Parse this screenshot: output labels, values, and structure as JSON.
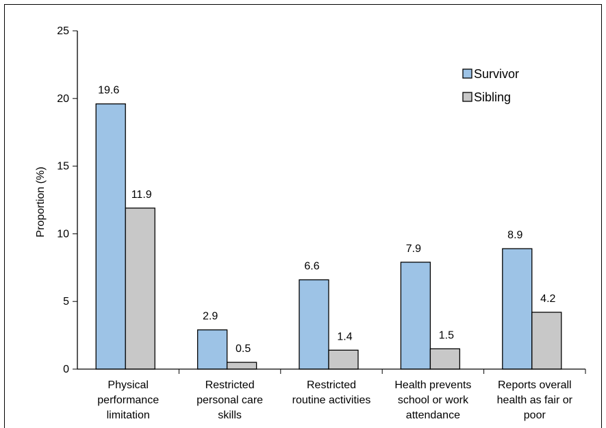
{
  "chart_data": {
    "type": "bar",
    "ylabel": "Proportion (%)",
    "xlabel": "",
    "ylim": [
      0,
      25
    ],
    "yticks": [
      0,
      5,
      10,
      15,
      20,
      25
    ],
    "categories": [
      [
        "Physical",
        "performance",
        "limitation"
      ],
      [
        "Restricted",
        "personal care",
        "skills"
      ],
      [
        "Restricted",
        "routine activities"
      ],
      [
        "Health prevents",
        "school or work",
        "attendance"
      ],
      [
        "Reports overall",
        "health as fair or",
        "poor"
      ]
    ],
    "series": [
      {
        "name": "Survivor",
        "color": "#9dc3e6",
        "values": [
          19.6,
          2.9,
          6.6,
          7.9,
          8.9
        ]
      },
      {
        "name": "Sibling",
        "color": "#c8c8c8",
        "values": [
          11.9,
          0.5,
          1.4,
          1.5,
          4.2
        ]
      }
    ],
    "legend_position": "top-right",
    "grid": false
  }
}
